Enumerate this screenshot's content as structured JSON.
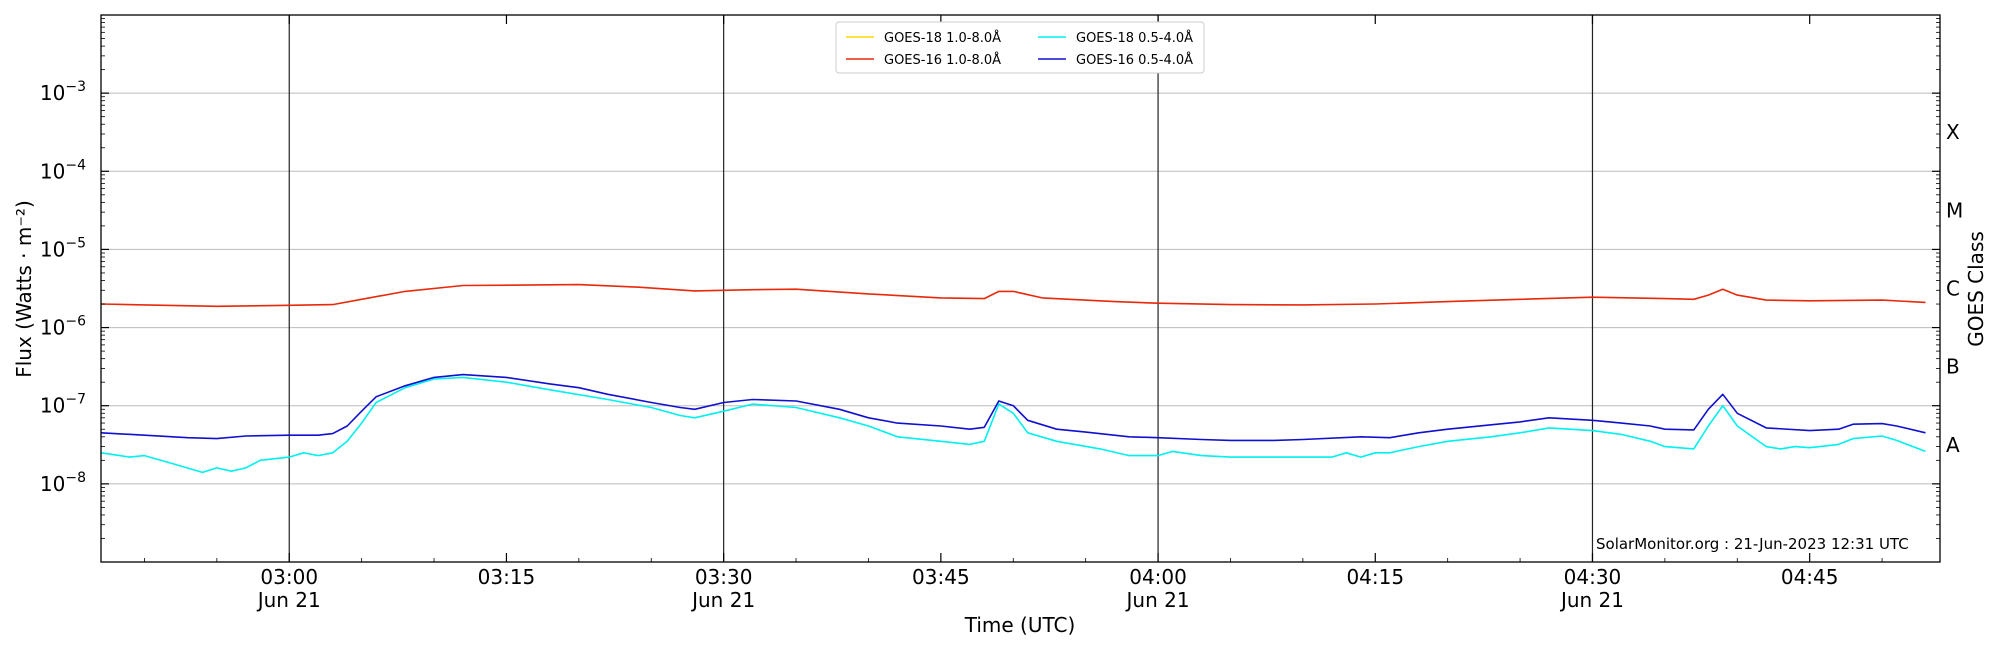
{
  "chart_data": {
    "type": "line",
    "title": "",
    "xlabel": "Time (UTC)",
    "ylabel": "Flux (Watts · m⁻²)",
    "y2label": "GOES Class",
    "yscale": "log",
    "ylim": [
      1e-09,
      0.01
    ],
    "xlim": [
      "02:47",
      "04:54"
    ],
    "x_ticks": [
      {
        "time": "03:00",
        "label": "03:00",
        "sublabel": "Jun 21"
      },
      {
        "time": "03:15",
        "label": "03:15",
        "sublabel": ""
      },
      {
        "time": "03:30",
        "label": "03:30",
        "sublabel": "Jun 21"
      },
      {
        "time": "03:45",
        "label": "03:45",
        "sublabel": ""
      },
      {
        "time": "04:00",
        "label": "04:00",
        "sublabel": "Jun 21"
      },
      {
        "time": "04:15",
        "label": "04:15",
        "sublabel": ""
      },
      {
        "time": "04:30",
        "label": "04:30",
        "sublabel": "Jun 21"
      },
      {
        "time": "04:45",
        "label": "04:45",
        "sublabel": ""
      }
    ],
    "day_lines": [
      "03:00",
      "03:30",
      "04:00",
      "04:30"
    ],
    "y_ticks": [
      {
        "exp": -8,
        "label": "10",
        "sup": "−8"
      },
      {
        "exp": -7,
        "label": "10",
        "sup": "−7"
      },
      {
        "exp": -6,
        "label": "10",
        "sup": "−6"
      },
      {
        "exp": -5,
        "label": "10",
        "sup": "−5"
      },
      {
        "exp": -4,
        "label": "10",
        "sup": "−4"
      },
      {
        "exp": -3,
        "label": "10",
        "sup": "−3"
      }
    ],
    "goes_classes": [
      {
        "label": "A",
        "exp": -7.5
      },
      {
        "label": "B",
        "exp": -6.5
      },
      {
        "label": "C",
        "exp": -5.5
      },
      {
        "label": "M",
        "exp": -4.5
      },
      {
        "label": "X",
        "exp": -3.5
      }
    ],
    "grid": true,
    "legend_position": "top-center",
    "series": [
      {
        "name": "GOES-18 1.0-8.0Å",
        "color": "#FFD700",
        "points": []
      },
      {
        "name": "GOES-16 1.0-8.0Å",
        "color": "#E8290B",
        "points": [
          [
            "02:47",
            2e-06
          ],
          [
            "02:50",
            1.95e-06
          ],
          [
            "02:55",
            1.87e-06
          ],
          [
            "03:00",
            1.93e-06
          ],
          [
            "03:03",
            1.97e-06
          ],
          [
            "03:05",
            2.3e-06
          ],
          [
            "03:08",
            2.9e-06
          ],
          [
            "03:12",
            3.45e-06
          ],
          [
            "03:16",
            3.5e-06
          ],
          [
            "03:20",
            3.55e-06
          ],
          [
            "03:24",
            3.3e-06
          ],
          [
            "03:28",
            2.95e-06
          ],
          [
            "03:32",
            3.05e-06
          ],
          [
            "03:35",
            3.1e-06
          ],
          [
            "03:40",
            2.7e-06
          ],
          [
            "03:45",
            2.4e-06
          ],
          [
            "03:48",
            2.35e-06
          ],
          [
            "03:49",
            2.9e-06
          ],
          [
            "03:50",
            2.9e-06
          ],
          [
            "03:52",
            2.4e-06
          ],
          [
            "03:57",
            2.15e-06
          ],
          [
            "04:00",
            2.05e-06
          ],
          [
            "04:05",
            1.97e-06
          ],
          [
            "04:10",
            1.95e-06
          ],
          [
            "04:15",
            2e-06
          ],
          [
            "04:20",
            2.15e-06
          ],
          [
            "04:25",
            2.3e-06
          ],
          [
            "04:30",
            2.45e-06
          ],
          [
            "04:35",
            2.35e-06
          ],
          [
            "04:37",
            2.3e-06
          ],
          [
            "04:38",
            2.6e-06
          ],
          [
            "04:39",
            3.1e-06
          ],
          [
            "04:40",
            2.6e-06
          ],
          [
            "04:42",
            2.25e-06
          ],
          [
            "04:45",
            2.2e-06
          ],
          [
            "04:50",
            2.25e-06
          ],
          [
            "04:53",
            2.1e-06
          ]
        ]
      },
      {
        "name": "GOES-18 0.5-4.0Å",
        "color": "#00F0F0",
        "points": [
          [
            "02:47",
            2.5e-08
          ],
          [
            "02:49",
            2.2e-08
          ],
          [
            "02:50",
            2.3e-08
          ],
          [
            "02:52",
            1.8e-08
          ],
          [
            "02:54",
            1.4e-08
          ],
          [
            "02:55",
            1.6e-08
          ],
          [
            "02:56",
            1.45e-08
          ],
          [
            "02:57",
            1.6e-08
          ],
          [
            "02:58",
            2e-08
          ],
          [
            "03:00",
            2.2e-08
          ],
          [
            "03:01",
            2.5e-08
          ],
          [
            "03:02",
            2.3e-08
          ],
          [
            "03:03",
            2.5e-08
          ],
          [
            "03:04",
            3.5e-08
          ],
          [
            "03:05",
            6e-08
          ],
          [
            "03:06",
            1.1e-07
          ],
          [
            "03:08",
            1.7e-07
          ],
          [
            "03:10",
            2.2e-07
          ],
          [
            "03:12",
            2.3e-07
          ],
          [
            "03:15",
            2e-07
          ],
          [
            "03:18",
            1.6e-07
          ],
          [
            "03:22",
            1.2e-07
          ],
          [
            "03:25",
            9.5e-08
          ],
          [
            "03:27",
            7.5e-08
          ],
          [
            "03:28",
            7e-08
          ],
          [
            "03:30",
            8.5e-08
          ],
          [
            "03:32",
            1.05e-07
          ],
          [
            "03:35",
            9.5e-08
          ],
          [
            "03:38",
            7e-08
          ],
          [
            "03:40",
            5.5e-08
          ],
          [
            "03:42",
            4e-08
          ],
          [
            "03:45",
            3.5e-08
          ],
          [
            "03:47",
            3.2e-08
          ],
          [
            "03:48",
            3.5e-08
          ],
          [
            "03:49",
            1.05e-07
          ],
          [
            "03:50",
            8e-08
          ],
          [
            "03:51",
            4.5e-08
          ],
          [
            "03:53",
            3.5e-08
          ],
          [
            "03:56",
            2.8e-08
          ],
          [
            "03:58",
            2.3e-08
          ],
          [
            "04:00",
            2.3e-08
          ],
          [
            "04:01",
            2.6e-08
          ],
          [
            "04:03",
            2.3e-08
          ],
          [
            "04:05",
            2.2e-08
          ],
          [
            "04:08",
            2.2e-08
          ],
          [
            "04:10",
            2.2e-08
          ],
          [
            "04:12",
            2.2e-08
          ],
          [
            "04:13",
            2.5e-08
          ],
          [
            "04:14",
            2.2e-08
          ],
          [
            "04:15",
            2.5e-08
          ],
          [
            "04:16",
            2.5e-08
          ],
          [
            "04:18",
            3e-08
          ],
          [
            "04:20",
            3.5e-08
          ],
          [
            "04:23",
            4e-08
          ],
          [
            "04:25",
            4.5e-08
          ],
          [
            "04:27",
            5.2e-08
          ],
          [
            "04:30",
            4.8e-08
          ],
          [
            "04:32",
            4.3e-08
          ],
          [
            "04:34",
            3.5e-08
          ],
          [
            "04:35",
            3e-08
          ],
          [
            "04:37",
            2.8e-08
          ],
          [
            "04:38",
            5.5e-08
          ],
          [
            "04:39",
            1e-07
          ],
          [
            "04:40",
            5.5e-08
          ],
          [
            "04:42",
            3e-08
          ],
          [
            "04:43",
            2.8e-08
          ],
          [
            "04:44",
            3e-08
          ],
          [
            "04:45",
            2.9e-08
          ],
          [
            "04:47",
            3.2e-08
          ],
          [
            "04:48",
            3.8e-08
          ],
          [
            "04:50",
            4.1e-08
          ],
          [
            "04:51",
            3.6e-08
          ],
          [
            "04:53",
            2.6e-08
          ]
        ]
      },
      {
        "name": "GOES-16 0.5-4.0Å",
        "color": "#1010D0",
        "points": [
          [
            "02:47",
            4.5e-08
          ],
          [
            "02:50",
            4.2e-08
          ],
          [
            "02:53",
            3.9e-08
          ],
          [
            "02:55",
            3.8e-08
          ],
          [
            "02:57",
            4.1e-08
          ],
          [
            "03:00",
            4.2e-08
          ],
          [
            "03:02",
            4.2e-08
          ],
          [
            "03:03",
            4.4e-08
          ],
          [
            "03:04",
            5.5e-08
          ],
          [
            "03:05",
            8.5e-08
          ],
          [
            "03:06",
            1.3e-07
          ],
          [
            "03:08",
            1.8e-07
          ],
          [
            "03:10",
            2.3e-07
          ],
          [
            "03:12",
            2.5e-07
          ],
          [
            "03:15",
            2.3e-07
          ],
          [
            "03:18",
            1.9e-07
          ],
          [
            "03:20",
            1.7e-07
          ],
          [
            "03:22",
            1.4e-07
          ],
          [
            "03:25",
            1.1e-07
          ],
          [
            "03:27",
            9.5e-08
          ],
          [
            "03:28",
            9e-08
          ],
          [
            "03:30",
            1.1e-07
          ],
          [
            "03:32",
            1.2e-07
          ],
          [
            "03:35",
            1.15e-07
          ],
          [
            "03:38",
            9e-08
          ],
          [
            "03:40",
            7e-08
          ],
          [
            "03:42",
            6e-08
          ],
          [
            "03:45",
            5.5e-08
          ],
          [
            "03:47",
            5e-08
          ],
          [
            "03:48",
            5.3e-08
          ],
          [
            "03:49",
            1.15e-07
          ],
          [
            "03:50",
            1e-07
          ],
          [
            "03:51",
            6.5e-08
          ],
          [
            "03:53",
            5e-08
          ],
          [
            "03:55",
            4.6e-08
          ],
          [
            "03:58",
            4e-08
          ],
          [
            "04:00",
            3.9e-08
          ],
          [
            "04:03",
            3.7e-08
          ],
          [
            "04:05",
            3.6e-08
          ],
          [
            "04:08",
            3.6e-08
          ],
          [
            "04:10",
            3.7e-08
          ],
          [
            "04:14",
            4e-08
          ],
          [
            "04:16",
            3.9e-08
          ],
          [
            "04:18",
            4.5e-08
          ],
          [
            "04:20",
            5e-08
          ],
          [
            "04:23",
            5.7e-08
          ],
          [
            "04:25",
            6.2e-08
          ],
          [
            "04:27",
            7e-08
          ],
          [
            "04:30",
            6.5e-08
          ],
          [
            "04:32",
            6e-08
          ],
          [
            "04:34",
            5.5e-08
          ],
          [
            "04:35",
            5e-08
          ],
          [
            "04:37",
            4.9e-08
          ],
          [
            "04:38",
            9e-08
          ],
          [
            "04:39",
            1.4e-07
          ],
          [
            "04:40",
            8e-08
          ],
          [
            "04:42",
            5.2e-08
          ],
          [
            "04:45",
            4.8e-08
          ],
          [
            "04:47",
            5e-08
          ],
          [
            "04:48",
            5.8e-08
          ],
          [
            "04:50",
            5.9e-08
          ],
          [
            "04:51",
            5.5e-08
          ],
          [
            "04:53",
            4.5e-08
          ]
        ]
      }
    ],
    "annotation": "SolarMonitor.org : 21-Jun-2023 12:31 UTC"
  }
}
